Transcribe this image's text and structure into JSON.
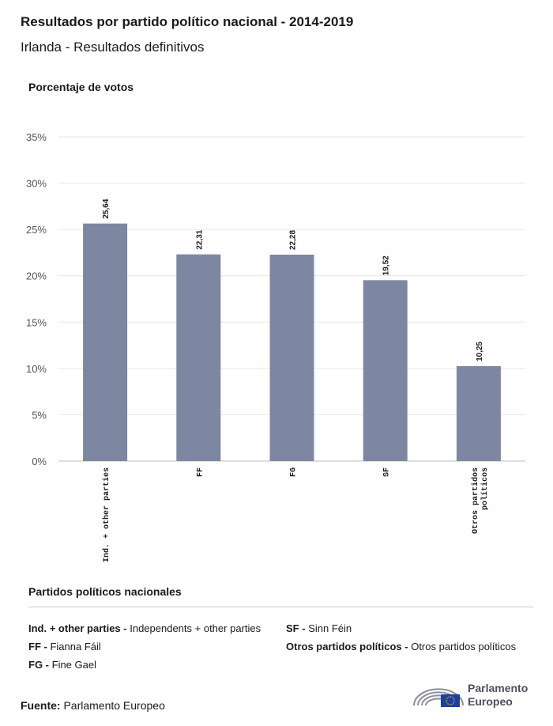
{
  "header": {
    "title": "Resultados por partido político nacional - 2014-2019",
    "subtitle": "Irlanda - Resultados definitivos"
  },
  "chart_data": {
    "type": "bar",
    "ylabel": "Porcentaje de votos",
    "categories": [
      "Ind. + other parties",
      "FF",
      "FG",
      "SF",
      "Otros partidos políticos"
    ],
    "category_lines": [
      [
        "Ind. + other parties"
      ],
      [
        "FF"
      ],
      [
        "FG"
      ],
      [
        "SF"
      ],
      [
        "Otros partidos",
        "políticos"
      ]
    ],
    "values": [
      25.64,
      22.31,
      22.28,
      19.52,
      10.25
    ],
    "value_labels": [
      "25,64",
      "22,31",
      "22,28",
      "19,52",
      "10,25"
    ],
    "yticks": [
      0,
      5,
      10,
      15,
      20,
      25,
      30,
      35
    ],
    "ytick_labels": [
      "0%",
      "5%",
      "10%",
      "15%",
      "20%",
      "25%",
      "30%",
      "35%"
    ],
    "ylim": [
      0,
      35
    ],
    "grid": true,
    "bar_color": "#7e87a2"
  },
  "legend": {
    "title": "Partidos políticos nacionales",
    "items": [
      {
        "abbr": "Ind. + other parties -",
        "name": "Independents + other parties"
      },
      {
        "abbr": "FF -",
        "name": "Fianna Fáil"
      },
      {
        "abbr": "FG -",
        "name": "Fine Gael"
      },
      {
        "abbr": "SF -",
        "name": "Sinn Féin"
      },
      {
        "abbr": "Otros partidos políticos -",
        "name": "Otros partidos políticos"
      }
    ]
  },
  "source": {
    "label": "Fuente:",
    "value": "Parlamento Europeo"
  },
  "logo": {
    "line1": "Parlamento",
    "line2": "Europeo",
    "icon": "european-parliament-logo-icon"
  }
}
